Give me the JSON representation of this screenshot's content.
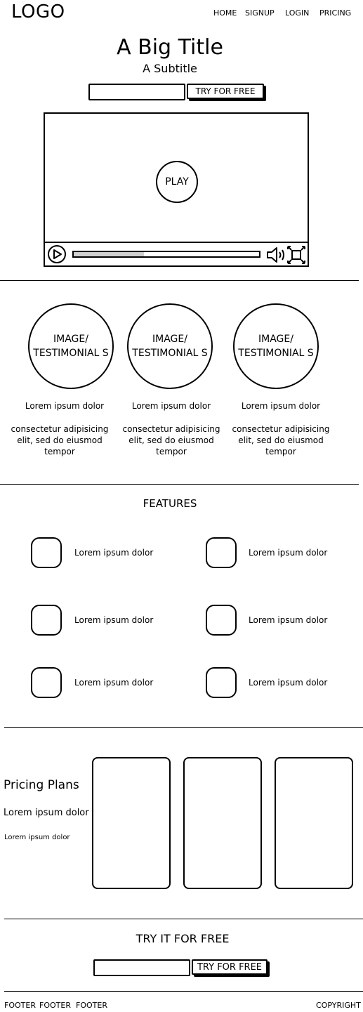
{
  "header": {
    "logo": "LOGO",
    "nav": [
      "HOME",
      "SIGNUP",
      "LOGIN",
      "PRICING"
    ]
  },
  "hero": {
    "title": "A Big Title",
    "subtitle": "A Subtitle",
    "input_value": "",
    "cta_label": "TRY FOR FREE"
  },
  "video": {
    "play_label": "PLAY",
    "progress": 0.38
  },
  "testimonials": [
    {
      "image_label": "IMAGE/ TESTIMONIAL S",
      "title": "Lorem ipsum dolor",
      "text": "consectetur adipisicing elit, sed do eiusmod tempor"
    },
    {
      "image_label": "IMAGE/ TESTIMONIAL S",
      "title": "Lorem ipsum dolor",
      "text": "consectetur adipisicing elit, sed do eiusmod tempor"
    },
    {
      "image_label": "IMAGE/ TESTIMONIAL S",
      "title": "Lorem ipsum dolor",
      "text": "consectetur adipisicing elit, sed do eiusmod tempor"
    }
  ],
  "features": {
    "title": "FEATURES",
    "items": [
      "Lorem ipsum dolor",
      "Lorem ipsum dolor",
      "Lorem ipsum dolor",
      "Lorem ipsum dolor",
      "Lorem ipsum dolor",
      "Lorem ipsum dolor"
    ]
  },
  "pricing": {
    "title": "Pricing Plans",
    "line1": "Lorem ipsum dolor",
    "line2": "Lorem ipsum dolor"
  },
  "bottom_cta": {
    "title": "TRY IT FOR FREE",
    "input_value": "",
    "cta_label": "TRY FOR FREE"
  },
  "footer": {
    "links": [
      "FOOTER",
      "FOOTER",
      "FOOTER"
    ],
    "copyright": "COPYRIGHT"
  }
}
